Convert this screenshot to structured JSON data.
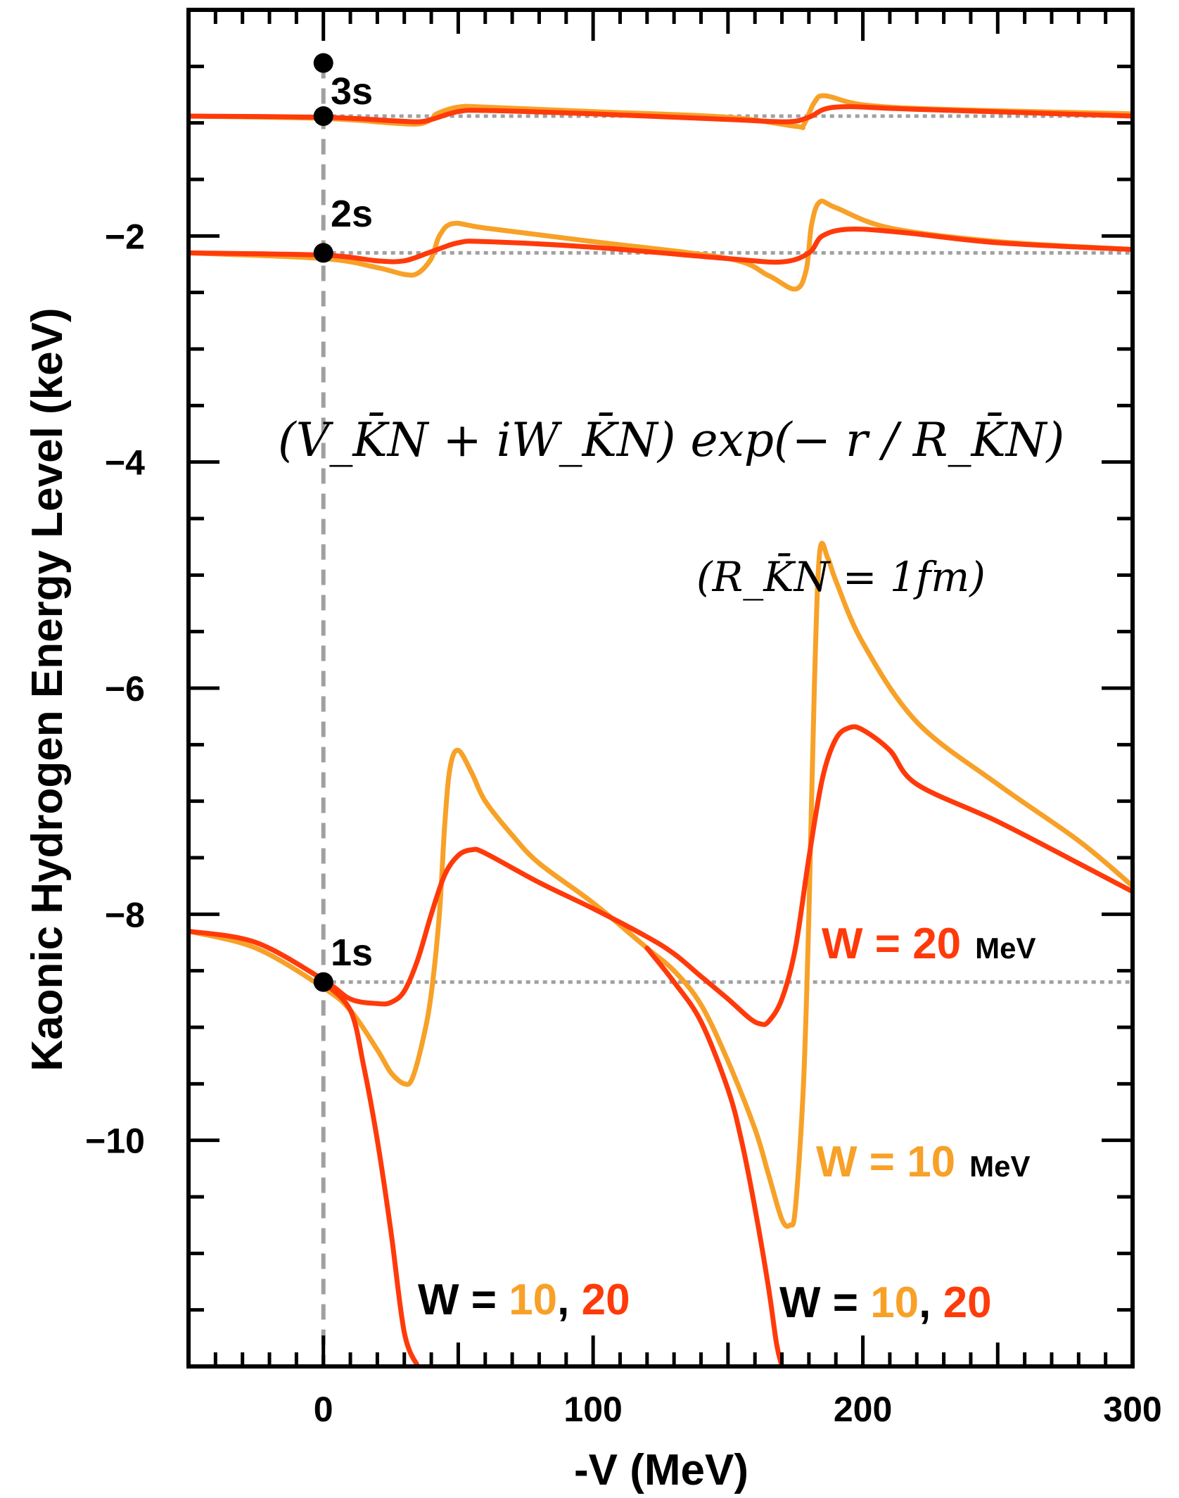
{
  "chart_data": {
    "type": "line",
    "title": "",
    "xlabel": "-V (MeV)",
    "ylabel": "Kaonic Hydrogen Energy Level (keV)",
    "xlim": [
      -50,
      300
    ],
    "ylim": [
      -12,
      0
    ],
    "xticks": [
      0,
      100,
      200,
      300
    ],
    "xtick_labels": [
      "0",
      "100",
      "200",
      "300"
    ],
    "yticks": [
      -2,
      -4,
      -6,
      -8,
      -10
    ],
    "ytick_labels": [
      "−2",
      "−4",
      "−6",
      "−8",
      "−10"
    ],
    "grid": false,
    "formula": {
      "main": "(V_K̄N + iW_K̄N) exp(− r / R_K̄N)",
      "note": "(R_K̄N = 1fm)"
    },
    "reference_levels": [
      {
        "label": "3s",
        "y": -0.94
      },
      {
        "label": "2s",
        "y": -2.15
      },
      {
        "label": "1s",
        "y": -8.6
      }
    ],
    "extra_point": {
      "x": 0,
      "y": -0.47
    },
    "colors": {
      "w10": "#f7a128",
      "w20": "#ff3a0a",
      "reference": "#a0a0a0",
      "markers": "#000000"
    },
    "legend": [
      {
        "prefix": "W = ",
        "value": "20",
        "unit": "MeV",
        "color": "#ff3a0a"
      },
      {
        "prefix": "W = ",
        "value": "10",
        "unit": "MeV",
        "color": "#f7a128"
      }
    ],
    "branch_labels": [
      {
        "prefix": "W = ",
        "v1": "10",
        "sep": ", ",
        "v2": "20"
      },
      {
        "prefix": "W = ",
        "v1": "10",
        "sep": ", ",
        "v2": "20"
      }
    ],
    "series": [
      {
        "group": "3s",
        "width_mev": 20,
        "color": "#ff3a0a",
        "x": [
          -50,
          0,
          25,
          35,
          40,
          50,
          60,
          100,
          150,
          172,
          180,
          190,
          220,
          300
        ],
        "y": [
          -0.94,
          -0.95,
          -0.98,
          -0.99,
          -0.97,
          -0.9,
          -0.89,
          -0.92,
          -0.97,
          -0.99,
          -0.95,
          -0.86,
          -0.88,
          -0.94
        ]
      },
      {
        "group": "3s",
        "width_mev": 10,
        "color": "#f7a128",
        "x": [
          -50,
          0,
          25,
          35,
          40,
          42,
          50,
          60,
          100,
          150,
          175,
          178,
          182,
          186,
          200,
          230,
          300
        ],
        "y": [
          -0.94,
          -0.96,
          -1.0,
          -1.01,
          -0.97,
          -0.92,
          -0.86,
          -0.86,
          -0.9,
          -0.95,
          -1.03,
          -1.02,
          -0.82,
          -0.76,
          -0.84,
          -0.88,
          -0.92
        ]
      },
      {
        "group": "2s",
        "width_mev": 20,
        "color": "#ff3a0a",
        "x": [
          -50,
          0,
          20,
          30,
          40,
          50,
          60,
          100,
          150,
          170,
          180,
          185,
          195,
          215,
          250,
          300
        ],
        "y": [
          -2.15,
          -2.17,
          -2.22,
          -2.22,
          -2.14,
          -2.06,
          -2.05,
          -2.1,
          -2.2,
          -2.23,
          -2.15,
          -2.0,
          -1.94,
          -1.97,
          -2.06,
          -2.12
        ]
      },
      {
        "group": "2s",
        "width_mev": 10,
        "color": "#f7a128",
        "x": [
          -50,
          0,
          20,
          30,
          35,
          40,
          43,
          48,
          60,
          100,
          150,
          165,
          175,
          179,
          181,
          184,
          190,
          210,
          250,
          300
        ],
        "y": [
          -2.15,
          -2.2,
          -2.28,
          -2.34,
          -2.33,
          -2.2,
          -2.0,
          -1.89,
          -1.93,
          -2.05,
          -2.2,
          -2.35,
          -2.47,
          -2.3,
          -1.9,
          -1.7,
          -1.75,
          -1.93,
          -2.05,
          -2.12
        ]
      },
      {
        "group": "1s-upper",
        "width_mev": 20,
        "color": "#ff3a0a",
        "x": [
          -50,
          -25,
          0,
          10,
          20,
          25,
          30,
          35,
          40,
          45,
          50,
          55,
          60,
          80,
          100,
          120,
          130,
          140,
          150,
          158,
          162,
          165,
          170,
          175,
          180,
          185,
          190,
          195,
          200,
          210,
          220,
          250,
          280,
          300
        ],
        "y": [
          -8.15,
          -8.25,
          -8.58,
          -8.75,
          -8.79,
          -8.78,
          -8.68,
          -8.4,
          -8.0,
          -7.65,
          -7.48,
          -7.43,
          -7.46,
          -7.72,
          -7.95,
          -8.2,
          -8.35,
          -8.55,
          -8.75,
          -8.92,
          -8.97,
          -8.95,
          -8.75,
          -8.3,
          -7.5,
          -6.8,
          -6.45,
          -6.35,
          -6.37,
          -6.55,
          -6.85,
          -7.18,
          -7.55,
          -7.8
        ]
      },
      {
        "group": "1s-upper",
        "width_mev": 10,
        "color": "#f7a128",
        "x": [
          -50,
          -25,
          0,
          10,
          20,
          25,
          30,
          33,
          37,
          40,
          43,
          45,
          47,
          50,
          55,
          60,
          70,
          80,
          100,
          120,
          130,
          140,
          150,
          160,
          165,
          170,
          173,
          175,
          178,
          180,
          182,
          184,
          187,
          190,
          200,
          220,
          250,
          280,
          300
        ],
        "y": [
          -8.15,
          -8.3,
          -8.65,
          -8.85,
          -9.2,
          -9.4,
          -9.5,
          -9.45,
          -9.1,
          -8.7,
          -8.0,
          -7.2,
          -6.7,
          -6.55,
          -6.75,
          -7.0,
          -7.3,
          -7.55,
          -7.9,
          -8.3,
          -8.5,
          -8.8,
          -9.3,
          -9.9,
          -10.3,
          -10.7,
          -10.75,
          -10.6,
          -9.5,
          -8.0,
          -6.0,
          -4.8,
          -4.85,
          -5.05,
          -5.6,
          -6.3,
          -6.85,
          -7.35,
          -7.75
        ]
      },
      {
        "group": "1s-lower",
        "width_mev": 20,
        "color": "#ff3a0a",
        "x": [
          0,
          10,
          15,
          20,
          25,
          30,
          35
        ],
        "y": [
          -8.6,
          -8.85,
          -9.35,
          -10.0,
          -10.8,
          -11.7,
          -12.0
        ]
      },
      {
        "group": "1s-lower",
        "width_mev": 20,
        "color": "#ff3a0a",
        "x": [
          120,
          130,
          140,
          150,
          155,
          160,
          165,
          168,
          170
        ],
        "y": [
          -8.3,
          -8.6,
          -8.95,
          -9.55,
          -10.0,
          -10.6,
          -11.3,
          -11.8,
          -12.0
        ]
      }
    ]
  }
}
